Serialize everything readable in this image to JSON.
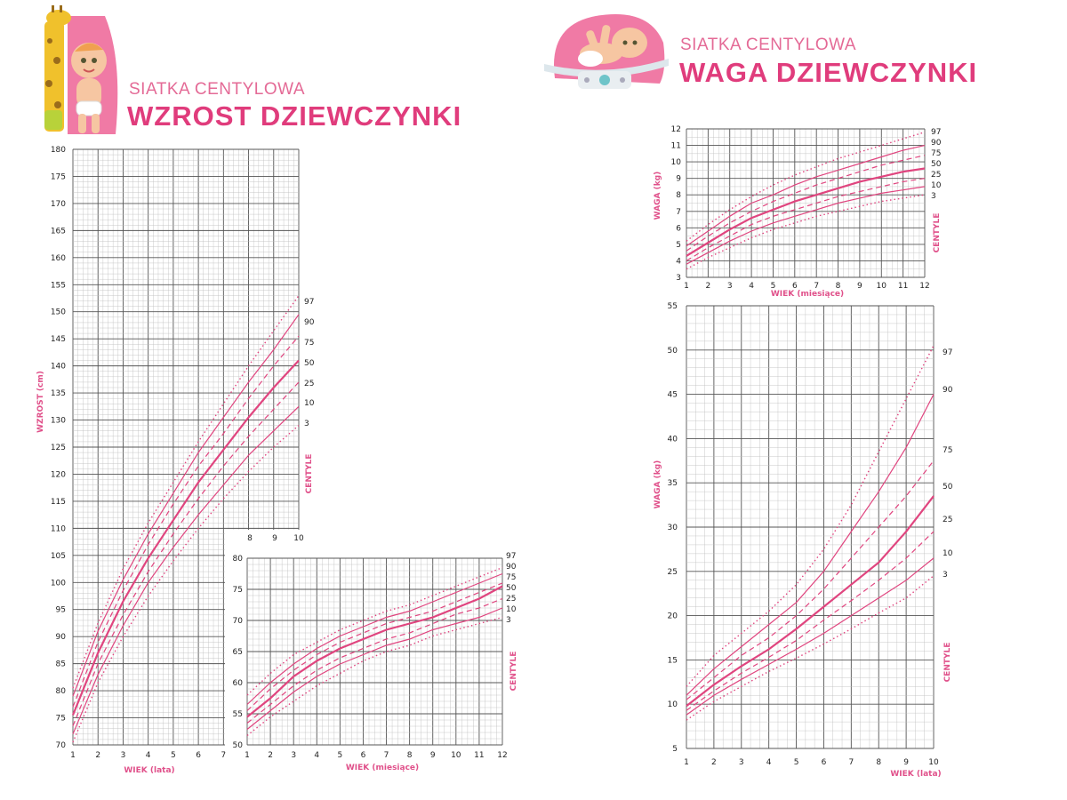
{
  "headers": {
    "left": {
      "subtitle": "SIATKA CENTYLOWA",
      "title": "WZROST DZIEWCZYNKI"
    },
    "right": {
      "subtitle": "SIATKA CENTYLOWA",
      "title": "WAGA DZIEWCZYNKI"
    }
  },
  "colors": {
    "curve": "#e0457f",
    "grid_major": "#555555",
    "grid_minor": "#bdbdbd",
    "label": "#e0508a",
    "brand": "#e03c7c"
  },
  "chart_data": [
    {
      "type": "line",
      "title": "WZROST DZIEWCZYNKI",
      "xlabel": "WIEK (lata)",
      "ylabel": "WZROST (cm)",
      "percentile_label": "CENTYLE",
      "xlim": [
        1,
        10
      ],
      "ylim": [
        70,
        180
      ],
      "x_ticks_main": [
        1,
        2,
        3,
        4,
        5,
        6,
        7
      ],
      "x_ticks_extra": [
        8,
        9,
        10
      ],
      "y_ticks": [
        70,
        75,
        80,
        85,
        90,
        95,
        100,
        105,
        110,
        115,
        120,
        125,
        130,
        135,
        140,
        145,
        150,
        155,
        160,
        165,
        170,
        175,
        180
      ],
      "percentile_labels": [
        "97",
        "90",
        "75",
        "50",
        "25",
        "10",
        "3"
      ],
      "x": [
        1,
        2,
        3,
        4,
        5,
        6,
        7,
        8,
        9,
        10
      ],
      "series": [
        {
          "name": "97",
          "style": "dotted",
          "values": [
            80.5,
            92.5,
            102.5,
            111,
            118.5,
            126,
            133,
            140,
            146.5,
            153
          ]
        },
        {
          "name": "90",
          "style": "solid",
          "values": [
            79,
            91,
            100.5,
            109,
            116.5,
            124,
            130.5,
            137,
            143,
            149.5
          ]
        },
        {
          "name": "75",
          "style": "dashed",
          "values": [
            77,
            89,
            98.5,
            107,
            114.5,
            121.5,
            127.5,
            134,
            140,
            145.5
          ]
        },
        {
          "name": "50",
          "style": "bold",
          "values": [
            75.5,
            87,
            96.5,
            104.5,
            111.5,
            118.5,
            124.5,
            130.5,
            136,
            141
          ]
        },
        {
          "name": "25",
          "style": "dashed",
          "values": [
            73.5,
            85,
            94,
            102,
            109,
            115.5,
            121.5,
            127,
            132,
            137
          ]
        },
        {
          "name": "10",
          "style": "solid",
          "values": [
            72,
            83,
            92,
            100,
            106.5,
            112.5,
            118,
            123.5,
            128,
            132.5
          ]
        },
        {
          "name": "3",
          "style": "dotted",
          "values": [
            70.5,
            81.5,
            90,
            97.5,
            104,
            110,
            115.5,
            120.5,
            125,
            129
          ]
        }
      ]
    },
    {
      "type": "line",
      "xlabel": "WIEK (miesiące)",
      "percentile_label": "CENTYLE",
      "xlim": [
        1,
        12
      ],
      "ylim": [
        50,
        80
      ],
      "x_ticks": [
        1,
        2,
        3,
        4,
        5,
        6,
        7,
        8,
        9,
        10,
        11,
        12
      ],
      "y_ticks": [
        50,
        55,
        60,
        65,
        70,
        75,
        80
      ],
      "percentile_labels": [
        "97",
        "90",
        "75",
        "50",
        "25",
        "10",
        "3"
      ],
      "x": [
        1,
        2,
        3,
        4,
        5,
        6,
        7,
        8,
        9,
        10,
        11,
        12
      ],
      "series": [
        {
          "name": "97",
          "style": "dotted",
          "values": [
            58,
            61.5,
            64.5,
            66.5,
            68.5,
            70,
            71.5,
            72.5,
            74,
            75.5,
            77,
            78.5
          ]
        },
        {
          "name": "90",
          "style": "solid",
          "values": [
            56.5,
            60,
            63,
            65.5,
            67.5,
            69,
            70.5,
            71.5,
            73,
            74.5,
            76,
            77.5
          ]
        },
        {
          "name": "75",
          "style": "dashed",
          "values": [
            55.5,
            59,
            62,
            64.5,
            66.5,
            68,
            69.5,
            70.5,
            71.5,
            73,
            74.5,
            76
          ]
        },
        {
          "name": "50",
          "style": "bold",
          "values": [
            54.5,
            57.5,
            61,
            63.5,
            65.5,
            67,
            68.5,
            69.5,
            70.5,
            72,
            73.5,
            75.5
          ]
        },
        {
          "name": "25",
          "style": "dashed",
          "values": [
            53.5,
            56.5,
            59.5,
            62,
            64,
            65.5,
            67,
            68,
            69.5,
            71,
            72,
            73.5
          ]
        },
        {
          "name": "10",
          "style": "solid",
          "values": [
            52.5,
            55.5,
            58.5,
            61,
            63,
            64.5,
            66,
            67,
            68.5,
            69.5,
            70.5,
            72
          ]
        },
        {
          "name": "3",
          "style": "dotted",
          "values": [
            51.5,
            54.5,
            57,
            59.5,
            61.5,
            63.5,
            65,
            66,
            67.5,
            68.5,
            69.5,
            70.5
          ]
        }
      ]
    },
    {
      "type": "line",
      "title": "WAGA DZIEWCZYNKI",
      "xlabel": "WIEK (miesiące)",
      "ylabel": "WAGA (kg)",
      "percentile_label": "CENTYLE",
      "xlim": [
        1,
        12
      ],
      "ylim": [
        3,
        12
      ],
      "x_ticks": [
        1,
        2,
        3,
        4,
        5,
        6,
        7,
        8,
        9,
        10,
        11,
        12
      ],
      "y_ticks": [
        3,
        4,
        5,
        6,
        7,
        8,
        9,
        10,
        11,
        12
      ],
      "percentile_labels": [
        "97",
        "90",
        "75",
        "50",
        "25",
        "10",
        "3"
      ],
      "x": [
        1,
        2,
        3,
        4,
        5,
        6,
        7,
        8,
        9,
        10,
        11,
        12
      ],
      "series": [
        {
          "name": "97",
          "style": "dotted",
          "values": [
            5.2,
            6.2,
            7.1,
            7.9,
            8.6,
            9.2,
            9.7,
            10.2,
            10.6,
            11,
            11.4,
            11.8
          ]
        },
        {
          "name": "90",
          "style": "solid",
          "values": [
            4.9,
            5.8,
            6.7,
            7.5,
            8,
            8.6,
            9.1,
            9.5,
            9.9,
            10.3,
            10.7,
            11
          ]
        },
        {
          "name": "75",
          "style": "dashed",
          "values": [
            4.6,
            5.5,
            6.3,
            7,
            7.6,
            8.1,
            8.6,
            9,
            9.4,
            9.8,
            10.1,
            10.4
          ]
        },
        {
          "name": "50",
          "style": "bold",
          "values": [
            4.3,
            5.1,
            5.9,
            6.6,
            7.1,
            7.6,
            8,
            8.4,
            8.8,
            9.1,
            9.4,
            9.6
          ]
        },
        {
          "name": "25",
          "style": "dashed",
          "values": [
            4,
            4.8,
            5.5,
            6.2,
            6.7,
            7.1,
            7.5,
            7.9,
            8.2,
            8.5,
            8.8,
            9
          ]
        },
        {
          "name": "10",
          "style": "solid",
          "values": [
            3.8,
            4.5,
            5.2,
            5.8,
            6.3,
            6.7,
            7.1,
            7.5,
            7.8,
            8.1,
            8.3,
            8.5
          ]
        },
        {
          "name": "3",
          "style": "dotted",
          "values": [
            3.5,
            4.2,
            4.8,
            5.4,
            5.9,
            6.3,
            6.7,
            7,
            7.3,
            7.6,
            7.8,
            8
          ]
        }
      ]
    },
    {
      "type": "line",
      "xlabel": "WIEK (lata)",
      "ylabel": "WAGA (kg)",
      "percentile_label": "CENTYLE",
      "xlim": [
        1,
        10
      ],
      "ylim": [
        5,
        55
      ],
      "x_ticks": [
        1,
        2,
        3,
        4,
        5,
        6,
        7,
        8,
        9,
        10
      ],
      "y_ticks": [
        5,
        10,
        15,
        20,
        25,
        30,
        35,
        40,
        45,
        50,
        55
      ],
      "percentile_labels": [
        "97",
        "90",
        "75",
        "50",
        "25",
        "10",
        "3"
      ],
      "x": [
        1,
        2,
        3,
        4,
        5,
        6,
        7,
        8,
        9,
        10
      ],
      "series": [
        {
          "name": "97",
          "style": "dotted",
          "values": [
            12,
            15.5,
            18,
            20.5,
            23.5,
            27.5,
            32.5,
            38.5,
            44.5,
            50.5
          ]
        },
        {
          "name": "90",
          "style": "solid",
          "values": [
            11,
            14,
            16.5,
            19,
            21.5,
            25,
            29.5,
            34,
            39,
            45
          ]
        },
        {
          "name": "75",
          "style": "dashed",
          "values": [
            10.5,
            13,
            15.5,
            17.5,
            20,
            23,
            26.5,
            30,
            33.5,
            37.5
          ]
        },
        {
          "name": "50",
          "style": "bold",
          "values": [
            9.8,
            12.2,
            14.3,
            16.2,
            18.5,
            21,
            23.5,
            26,
            29.5,
            33.5
          ]
        },
        {
          "name": "25",
          "style": "dashed",
          "values": [
            9.3,
            11.5,
            13.5,
            15.3,
            17.2,
            19.5,
            21.7,
            24,
            26.5,
            29.5
          ]
        },
        {
          "name": "10",
          "style": "solid",
          "values": [
            8.8,
            11,
            12.8,
            14.5,
            16.2,
            18,
            20,
            22,
            24,
            26.5
          ]
        },
        {
          "name": "3",
          "style": "dotted",
          "values": [
            8.2,
            10.3,
            12,
            13.7,
            15.2,
            16.8,
            18.5,
            20.3,
            22,
            24.5
          ]
        }
      ]
    }
  ]
}
